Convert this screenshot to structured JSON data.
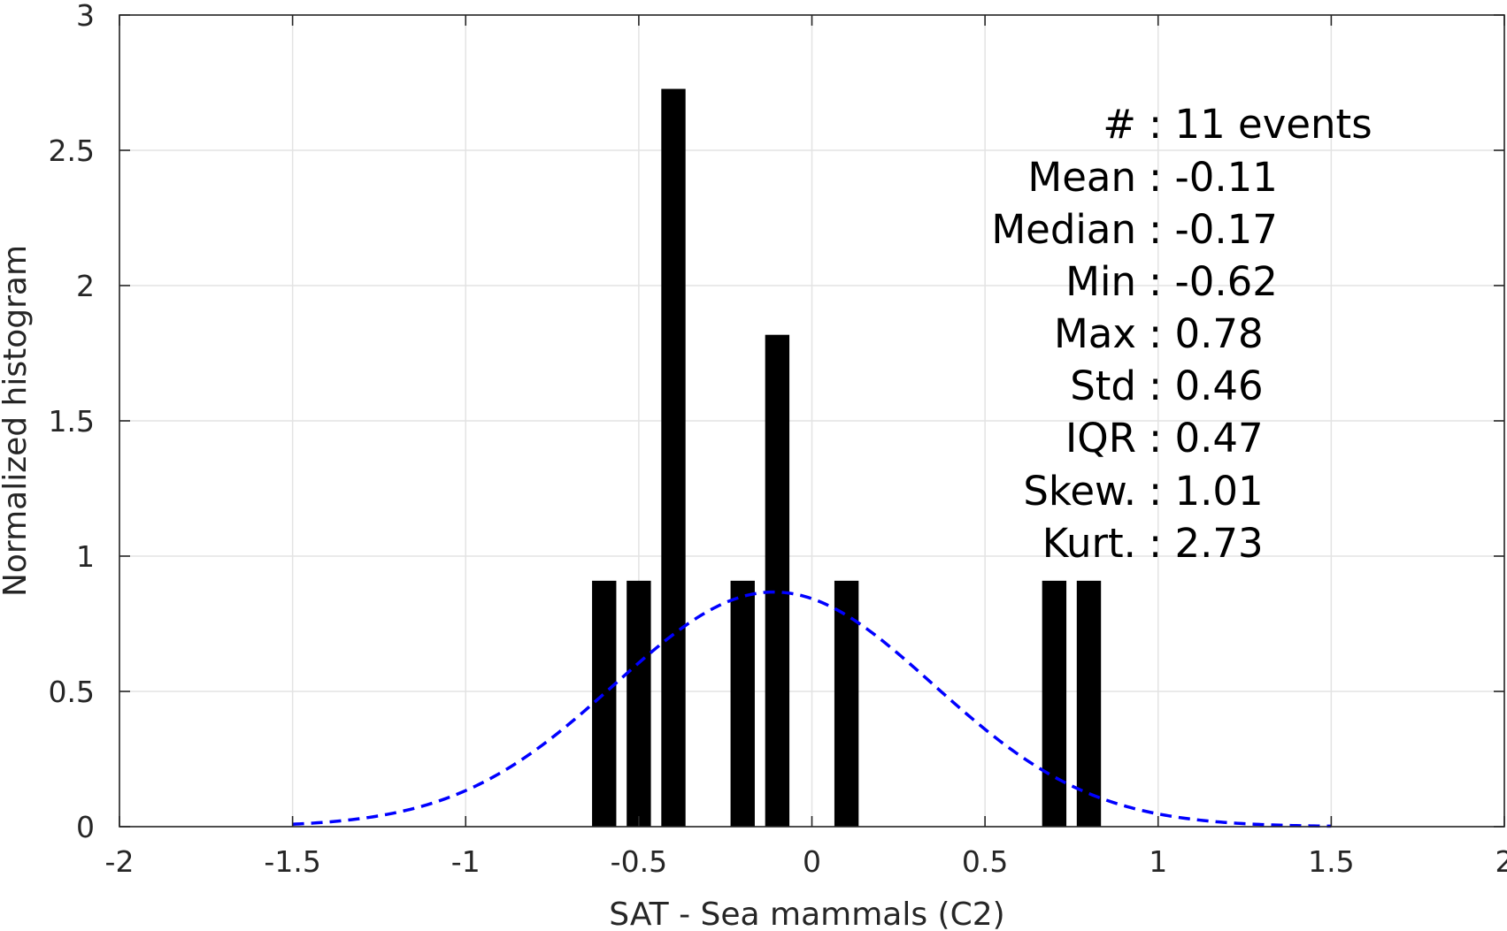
{
  "chart_data": {
    "type": "bar",
    "xlabel": "SAT - Sea mammals (C2)",
    "ylabel": "Normalized histogram",
    "xlim": [
      -2,
      2
    ],
    "ylim": [
      0,
      3
    ],
    "xticks": [
      "-2",
      "-1.5",
      "-1",
      "-0.5",
      "0",
      "0.5",
      "1",
      "1.5",
      "2"
    ],
    "yticks": [
      "0",
      "0.5",
      "1",
      "1.5",
      "2",
      "2.5",
      "3"
    ],
    "grid": true,
    "bar_width": 0.07,
    "bars": [
      {
        "x": -0.6,
        "y": 0.909
      },
      {
        "x": -0.5,
        "y": 0.909
      },
      {
        "x": -0.4,
        "y": 2.727
      },
      {
        "x": -0.2,
        "y": 0.909
      },
      {
        "x": -0.1,
        "y": 1.818
      },
      {
        "x": 0.1,
        "y": 0.909
      },
      {
        "x": 0.7,
        "y": 0.909
      },
      {
        "x": 0.8,
        "y": 0.909
      }
    ],
    "fit_curve": {
      "style": "dashed",
      "color": "#0000ff",
      "mean": -0.11,
      "std": 0.46,
      "x_range": [
        -1.5,
        1.5
      ]
    },
    "stats_lines": [
      "#  : 11 events",
      "Mean : -0.11",
      "Median : -0.17",
      "Min : -0.62",
      "Max : 0.78",
      "Std : 0.46",
      "IQR : 0.47",
      "Skew. : 1.01",
      "Kurt. : 2.73"
    ],
    "colors": {
      "bars": "#000000",
      "fit": "#0000ff",
      "axis": "#262626",
      "grid": "#e3e3e3"
    }
  }
}
